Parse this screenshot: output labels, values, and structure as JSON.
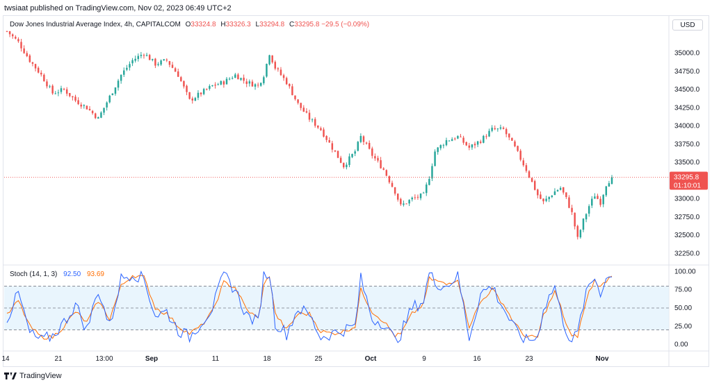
{
  "header": {
    "published": "twsiaat published on TradingView.com, Nov 02, 2023 06:49 UTC+2"
  },
  "legend": {
    "symbol": "Dow Jones Industrial Average Index, 4h, CAPITALCOM",
    "o_label": "O",
    "o": "33324.8",
    "h_label": "H",
    "h": "33326.3",
    "l_label": "L",
    "l": "33294.8",
    "c_label": "C",
    "c": "33295.8",
    "change": "−29.5 (−0.09%)"
  },
  "currency": "USD",
  "price_tag": {
    "price": "33295.8",
    "countdown": "01:10:01"
  },
  "stoch_legend": {
    "name": "Stoch (14, 1, 3)",
    "k": "92.50",
    "d": "93.69"
  },
  "footer": {
    "brand": "TradingView",
    "logo_icon": "tradingview-logo-icon"
  },
  "colors": {
    "up": "#26a69a",
    "down": "#ef5350",
    "k_line": "#2962ff",
    "d_line": "#ff6d00",
    "band": "#e3f2fd"
  },
  "chart_data": [
    {
      "type": "candlestick",
      "title": "Dow Jones Industrial Average Index, 4h, CAPITALCOM",
      "ylim": [
        32100,
        35500
      ],
      "y_ticks": [
        32250,
        32500,
        32750,
        33000,
        33250,
        33500,
        33750,
        34000,
        34250,
        34500,
        34750,
        35000
      ],
      "y_tick_labels": [
        "32250.0",
        "32500.0",
        "32750.0",
        "33000.0",
        "33250.0",
        "33500.0",
        "33750.0",
        "34000.0",
        "34250.0",
        "34500.0",
        "34750.0",
        "35000.0"
      ],
      "x_tick_labels": [
        "14",
        "21",
        "13:00",
        "Sep",
        "11",
        "18",
        "25",
        "Oct",
        "9",
        "16",
        "23",
        "Nov"
      ],
      "last_price": 33295.8,
      "close_path": [
        [
          0,
          35300
        ],
        [
          4,
          35150
        ],
        [
          8,
          34900
        ],
        [
          12,
          34700
        ],
        [
          16,
          34450
        ],
        [
          20,
          34500
        ],
        [
          24,
          34350
        ],
        [
          28,
          34250
        ],
        [
          32,
          34100
        ],
        [
          36,
          34400
        ],
        [
          40,
          34700
        ],
        [
          44,
          34900
        ],
        [
          48,
          35000
        ],
        [
          52,
          34850
        ],
        [
          56,
          34900
        ],
        [
          60,
          34700
        ],
        [
          64,
          34350
        ],
        [
          68,
          34450
        ],
        [
          72,
          34550
        ],
        [
          76,
          34600
        ],
        [
          80,
          34700
        ],
        [
          84,
          34600
        ],
        [
          88,
          34550
        ],
        [
          90,
          34700
        ],
        [
          92,
          35000
        ],
        [
          94,
          34800
        ],
        [
          98,
          34600
        ],
        [
          102,
          34300
        ],
        [
          106,
          34100
        ],
        [
          110,
          33950
        ],
        [
          114,
          33700
        ],
        [
          118,
          33450
        ],
        [
          122,
          33650
        ],
        [
          124,
          33850
        ],
        [
          128,
          33600
        ],
        [
          132,
          33400
        ],
        [
          136,
          33100
        ],
        [
          138,
          32900
        ],
        [
          142,
          33000
        ],
        [
          146,
          33050
        ],
        [
          148,
          33300
        ],
        [
          150,
          33650
        ],
        [
          154,
          33800
        ],
        [
          158,
          33850
        ],
        [
          162,
          33700
        ],
        [
          166,
          33800
        ],
        [
          170,
          33950
        ],
        [
          174,
          33950
        ],
        [
          178,
          33700
        ],
        [
          182,
          33400
        ],
        [
          186,
          33050
        ],
        [
          188,
          32950
        ],
        [
          192,
          33100
        ],
        [
          194,
          33150
        ],
        [
          196,
          33000
        ],
        [
          198,
          32800
        ],
        [
          200,
          32450
        ],
        [
          202,
          32700
        ],
        [
          204,
          32900
        ],
        [
          206,
          33050
        ],
        [
          208,
          32950
        ],
        [
          210,
          33200
        ],
        [
          212,
          33295.8
        ]
      ],
      "note_close_path": "index = 4h bar number, value = approximate close"
    },
    {
      "type": "line",
      "title": "Stoch (14, 1, 3)",
      "ylim": [
        -8,
        108
      ],
      "y_ticks": [
        0,
        25,
        50,
        75,
        100
      ],
      "y_tick_labels": [
        "0.00",
        "25.00",
        "50.00",
        "75.00",
        "100.00"
      ],
      "band": [
        20,
        80
      ],
      "midline": 50,
      "k": [
        [
          0,
          35
        ],
        [
          4,
          70
        ],
        [
          8,
          15
        ],
        [
          12,
          5
        ],
        [
          16,
          12
        ],
        [
          20,
          30
        ],
        [
          24,
          55
        ],
        [
          28,
          20
        ],
        [
          32,
          75
        ],
        [
          36,
          25
        ],
        [
          40,
          90
        ],
        [
          44,
          98
        ],
        [
          48,
          90
        ],
        [
          52,
          40
        ],
        [
          56,
          45
        ],
        [
          60,
          20
        ],
        [
          64,
          10
        ],
        [
          68,
          30
        ],
        [
          72,
          50
        ],
        [
          76,
          95
        ],
        [
          80,
          75
        ],
        [
          84,
          40
        ],
        [
          88,
          30
        ],
        [
          90,
          95
        ],
        [
          92,
          98
        ],
        [
          94,
          30
        ],
        [
          98,
          15
        ],
        [
          102,
          50
        ],
        [
          106,
          40
        ],
        [
          110,
          10
        ],
        [
          114,
          15
        ],
        [
          118,
          20
        ],
        [
          122,
          25
        ],
        [
          124,
          90
        ],
        [
          128,
          35
        ],
        [
          132,
          30
        ],
        [
          136,
          5
        ],
        [
          138,
          15
        ],
        [
          142,
          50
        ],
        [
          146,
          60
        ],
        [
          148,
          98
        ],
        [
          150,
          85
        ],
        [
          154,
          80
        ],
        [
          158,
          95
        ],
        [
          162,
          10
        ],
        [
          166,
          70
        ],
        [
          170,
          80
        ],
        [
          174,
          50
        ],
        [
          178,
          20
        ],
        [
          182,
          5
        ],
        [
          186,
          10
        ],
        [
          188,
          50
        ],
        [
          192,
          80
        ],
        [
          194,
          45
        ],
        [
          196,
          20
        ],
        [
          198,
          5
        ],
        [
          200,
          15
        ],
        [
          202,
          55
        ],
        [
          204,
          80
        ],
        [
          206,
          92
        ],
        [
          208,
          72
        ],
        [
          210,
          90
        ],
        [
          212,
          92.5
        ]
      ],
      "d": [
        [
          0,
          40
        ],
        [
          4,
          60
        ],
        [
          8,
          25
        ],
        [
          12,
          10
        ],
        [
          16,
          10
        ],
        [
          20,
          25
        ],
        [
          24,
          45
        ],
        [
          28,
          30
        ],
        [
          32,
          60
        ],
        [
          36,
          35
        ],
        [
          40,
          80
        ],
        [
          44,
          95
        ],
        [
          48,
          92
        ],
        [
          52,
          50
        ],
        [
          56,
          42
        ],
        [
          60,
          25
        ],
        [
          64,
          15
        ],
        [
          68,
          25
        ],
        [
          72,
          45
        ],
        [
          76,
          85
        ],
        [
          80,
          78
        ],
        [
          84,
          48
        ],
        [
          88,
          35
        ],
        [
          90,
          80
        ],
        [
          92,
          95
        ],
        [
          94,
          42
        ],
        [
          98,
          20
        ],
        [
          102,
          42
        ],
        [
          106,
          42
        ],
        [
          110,
          18
        ],
        [
          114,
          15
        ],
        [
          118,
          18
        ],
        [
          122,
          25
        ],
        [
          124,
          75
        ],
        [
          128,
          45
        ],
        [
          132,
          32
        ],
        [
          136,
          12
        ],
        [
          138,
          14
        ],
        [
          142,
          42
        ],
        [
          146,
          55
        ],
        [
          148,
          90
        ],
        [
          150,
          88
        ],
        [
          154,
          82
        ],
        [
          158,
          90
        ],
        [
          162,
          25
        ],
        [
          166,
          58
        ],
        [
          170,
          76
        ],
        [
          174,
          55
        ],
        [
          178,
          28
        ],
        [
          182,
          10
        ],
        [
          186,
          10
        ],
        [
          188,
          40
        ],
        [
          192,
          72
        ],
        [
          194,
          52
        ],
        [
          196,
          28
        ],
        [
          198,
          10
        ],
        [
          200,
          12
        ],
        [
          202,
          45
        ],
        [
          204,
          72
        ],
        [
          206,
          88
        ],
        [
          208,
          78
        ],
        [
          210,
          88
        ],
        [
          212,
          93.69
        ]
      ]
    }
  ]
}
